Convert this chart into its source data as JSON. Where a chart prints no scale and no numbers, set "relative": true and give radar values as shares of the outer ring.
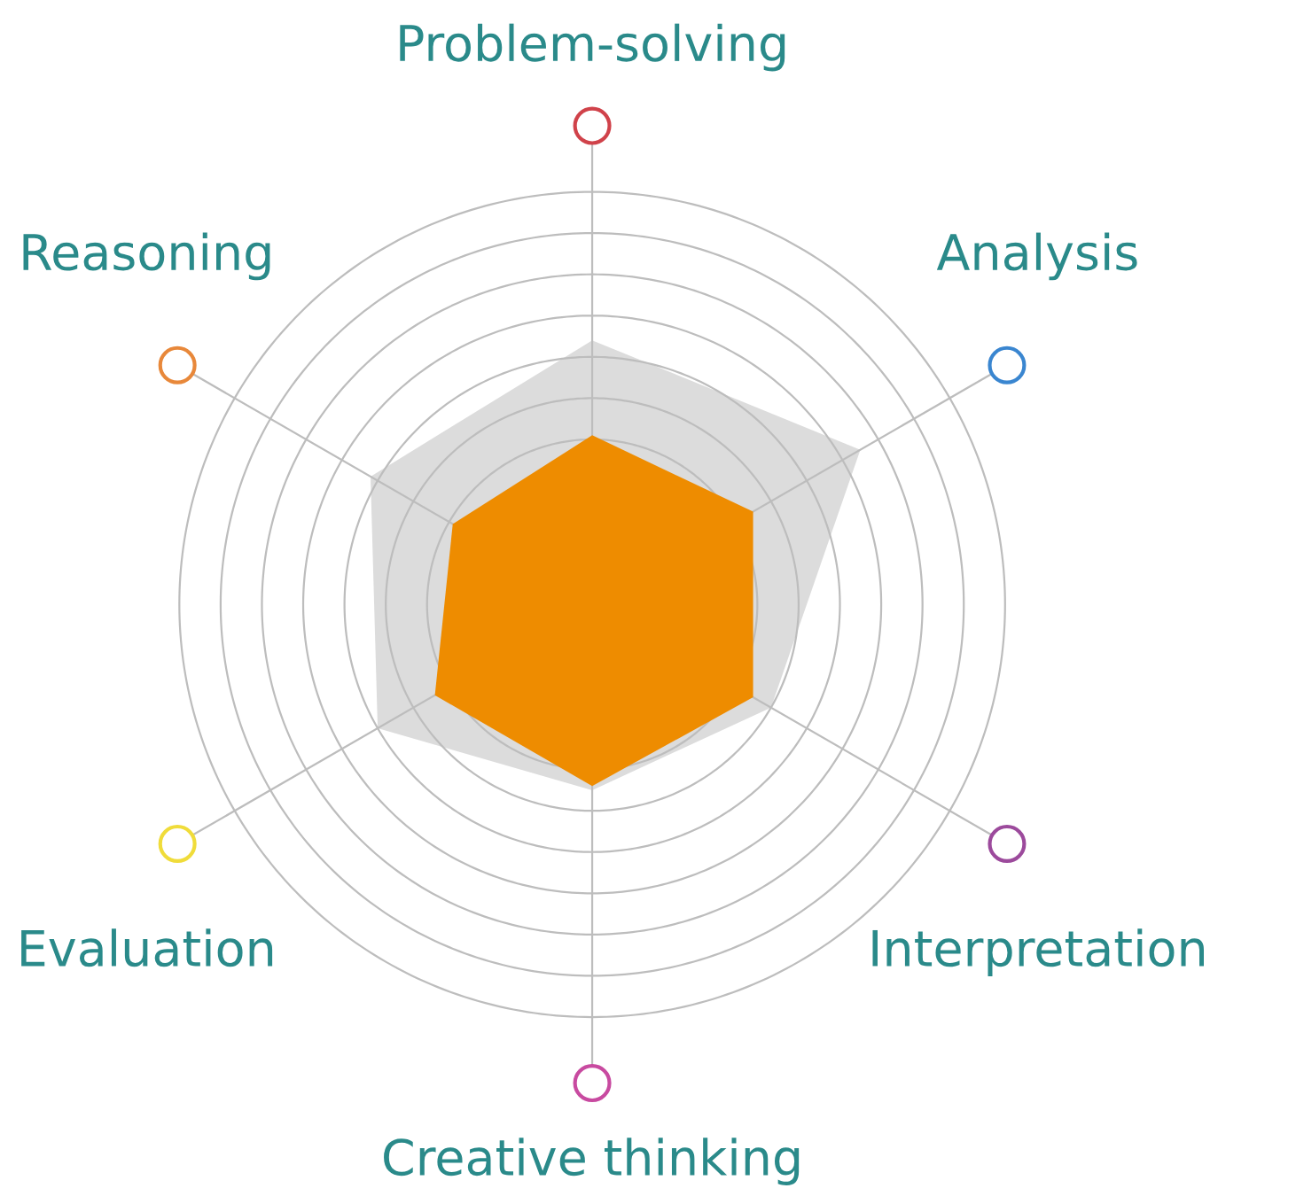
{
  "chart_data": {
    "type": "radar",
    "relative": true,
    "grid": true,
    "categories": [
      "Problem-solving",
      "Analysis",
      "Interpretation",
      "Creative thinking",
      "Evaluation",
      "Reasoning"
    ],
    "series": [
      {
        "color": "#dcdcdc",
        "values": [
          0.64,
          0.75,
          0.5,
          0.45,
          0.6,
          0.62
        ]
      },
      {
        "color": "#ee8c00",
        "values": [
          0.41,
          0.45,
          0.45,
          0.44,
          0.44,
          0.39
        ]
      }
    ]
  }
}
